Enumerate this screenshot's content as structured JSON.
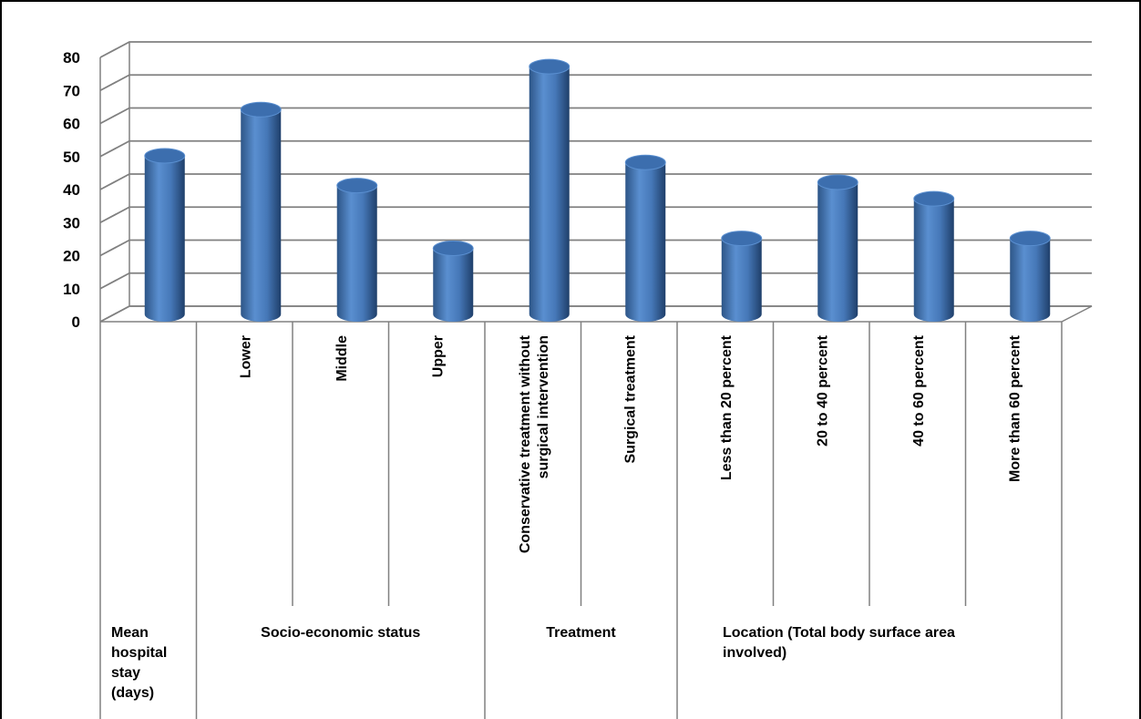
{
  "chart_data": {
    "type": "bar",
    "style": "3d-cylinder",
    "title": "",
    "xlabel": "",
    "ylabel": "",
    "ylim": [
      0,
      80
    ],
    "yticks": [
      0,
      10,
      20,
      30,
      40,
      50,
      60,
      70,
      80
    ],
    "grid": true,
    "legend": "none",
    "bar_color": "#4a7ebb",
    "categories": [
      "",
      "Lower",
      "Middle",
      "Upper",
      "Conservative treatment without surgical intervention",
      "Surgical treatment",
      "Less than 20 percent",
      "20 to 40 percent",
      "40 to 60 percent",
      "More than 60 percent"
    ],
    "category_lines": [
      [],
      [
        "Lower"
      ],
      [
        "Middle"
      ],
      [
        "Upper"
      ],
      [
        "Conservative treatment without",
        "surgical intervention"
      ],
      [
        "Surgical treatment"
      ],
      [
        "Less than 20 percent"
      ],
      [
        "20 to 40 percent"
      ],
      [
        "40 to 60 percent"
      ],
      [
        "More than 60 percent"
      ]
    ],
    "values": [
      48,
      62,
      39,
      20,
      75,
      46,
      23,
      40,
      35,
      23
    ],
    "groups": [
      {
        "label": "Mean\nhospital\nstay\n(days)",
        "start": 0,
        "end": 0
      },
      {
        "label": "Socio-economic status",
        "start": 1,
        "end": 3
      },
      {
        "label": "Treatment",
        "start": 4,
        "end": 5
      },
      {
        "label": "Location (Total body surface area\ninvolved)",
        "start": 6,
        "end": 9
      }
    ]
  }
}
